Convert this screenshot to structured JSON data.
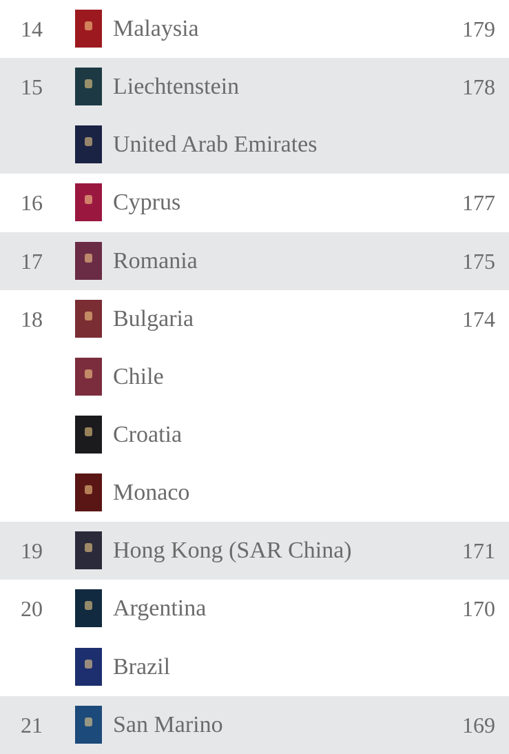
{
  "groups": [
    {
      "rank": 14,
      "score": 179,
      "countries": [
        {
          "name": "Malaysia",
          "color": "#9c1a1f"
        }
      ]
    },
    {
      "rank": 15,
      "score": 178,
      "countries": [
        {
          "name": "Liechtenstein",
          "color": "#1d3a44"
        },
        {
          "name": "United Arab Emirates",
          "color": "#1a2344"
        }
      ]
    },
    {
      "rank": 16,
      "score": 177,
      "countries": [
        {
          "name": "Cyprus",
          "color": "#9a1840"
        }
      ]
    },
    {
      "rank": 17,
      "score": 175,
      "countries": [
        {
          "name": "Romania",
          "color": "#6a2b45"
        }
      ]
    },
    {
      "rank": 18,
      "score": 174,
      "countries": [
        {
          "name": "Bulgaria",
          "color": "#7a2d33"
        },
        {
          "name": "Chile",
          "color": "#7b2d3d"
        },
        {
          "name": "Croatia",
          "color": "#1b1b1e"
        },
        {
          "name": "Monaco",
          "color": "#5a1515"
        }
      ]
    },
    {
      "rank": 19,
      "score": 171,
      "countries": [
        {
          "name": "Hong Kong (SAR China)",
          "color": "#2a2a3a"
        }
      ]
    },
    {
      "rank": 20,
      "score": 170,
      "countries": [
        {
          "name": "Argentina",
          "color": "#122a40"
        },
        {
          "name": "Brazil",
          "color": "#1d2f6e"
        }
      ]
    },
    {
      "rank": 21,
      "score": 169,
      "countries": [
        {
          "name": "San Marino",
          "color": "#1c4a7a"
        }
      ]
    }
  ]
}
